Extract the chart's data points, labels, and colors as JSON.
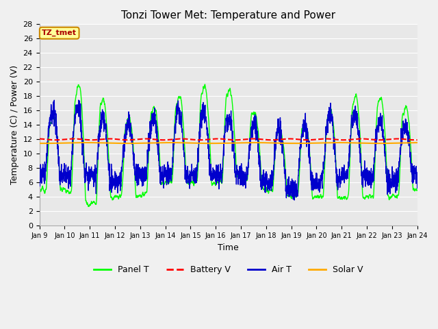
{
  "title": "Tonzi Tower Met: Temperature and Power",
  "xlabel": "Time",
  "ylabel": "Temperature (C) / Power (V)",
  "xlim_days": [
    9,
    24
  ],
  "ylim": [
    0,
    28
  ],
  "yticks": [
    0,
    2,
    4,
    6,
    8,
    10,
    12,
    14,
    16,
    18,
    20,
    22,
    24,
    26,
    28
  ],
  "xtick_labels": [
    "Jan 9",
    "Jan 10",
    "Jan 11",
    "Jan 12",
    "Jan 13",
    "Jan 14",
    "Jan 15",
    "Jan 16",
    "Jan 17",
    "Jan 18",
    "Jan 19",
    "Jan 20",
    "Jan 21",
    "Jan 22",
    "Jan 23",
    "Jan 24"
  ],
  "battery_v_level": 12.0,
  "solar_v_level": 11.5,
  "panel_t_color": "#00ff00",
  "battery_v_color": "#ff0000",
  "air_t_color": "#0000cc",
  "solar_v_color": "#ffaa00",
  "fig_bg_color": "#f0f0f0",
  "plot_bg_color": "#e8e8e8",
  "grid_color": "#ffffff",
  "annotation_text": "TZ_tmet",
  "annotation_color": "#aa0000",
  "annotation_bg": "#ffff99",
  "annotation_border": "#cc8800",
  "legend_labels": [
    "Panel T",
    "Battery V",
    "Air T",
    "Solar V"
  ]
}
